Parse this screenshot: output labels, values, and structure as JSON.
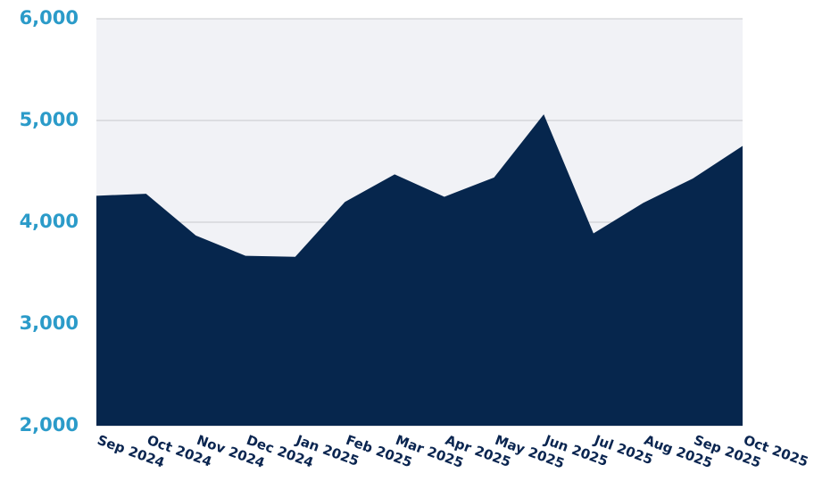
{
  "chart_data": {
    "type": "area",
    "categories": [
      "Sep 2024",
      "Oct 2024",
      "Nov 2024",
      "Dec 2024",
      "Jan 2025",
      "Feb 2025",
      "Mar 2025",
      "Apr 2025",
      "May 2025",
      "Jun 2025",
      "Jul 2025",
      "Aug 2025",
      "Sep 2025",
      "Oct 2025"
    ],
    "values": [
      4260,
      4280,
      3870,
      3670,
      3660,
      4200,
      4470,
      4250,
      4440,
      5060,
      3890,
      4190,
      4430,
      4750
    ],
    "color": "#06264d",
    "ylim": [
      2000,
      6000
    ],
    "yticks": [
      {
        "value": 2000,
        "label": "2,000"
      },
      {
        "value": 3000,
        "label": "3,000"
      },
      {
        "value": 4000,
        "label": "4,000"
      },
      {
        "value": 5000,
        "label": "5,000"
      },
      {
        "value": 6000,
        "label": "6,000"
      }
    ],
    "grid": true
  }
}
